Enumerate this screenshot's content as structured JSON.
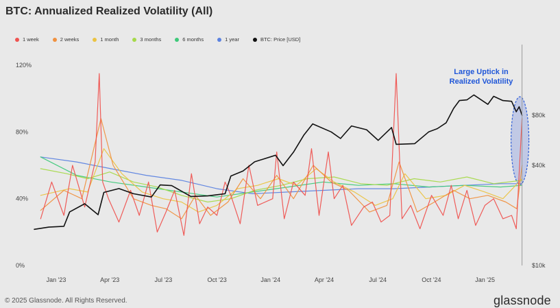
{
  "chart_data": {
    "type": "line",
    "title": "BTC: Annualized Realized Volatility (All)",
    "x_ticks": [
      "Jan '23",
      "Apr '23",
      "Jul '23",
      "Oct '23",
      "Jan '24",
      "Apr '24",
      "Jul '24",
      "Oct '24",
      "Jan '25"
    ],
    "x_range": [
      "2022-11-20",
      "2025-03-14"
    ],
    "y_left": {
      "ticks": [
        "0%",
        "40%",
        "80%",
        "120%"
      ],
      "range": [
        0,
        120
      ]
    },
    "y_right": {
      "scale": "log",
      "ticks": [
        "$10k",
        "$40k",
        "$80k"
      ],
      "range": [
        10000,
        160000
      ]
    },
    "legend_position": "top-left",
    "grid": false,
    "series": [
      {
        "name": "1 week",
        "color": "#ef5350",
        "axis": "left",
        "x": [
          "2022-12-01",
          "2022-12-20",
          "2023-01-10",
          "2023-01-25",
          "2023-02-15",
          "2023-03-05",
          "2023-03-12",
          "2023-03-18",
          "2023-03-28",
          "2023-04-15",
          "2023-05-05",
          "2023-05-20",
          "2023-06-05",
          "2023-06-20",
          "2023-07-05",
          "2023-07-20",
          "2023-08-05",
          "2023-08-18",
          "2023-09-01",
          "2023-09-15",
          "2023-10-01",
          "2023-10-15",
          "2023-10-25",
          "2023-11-10",
          "2023-11-25",
          "2023-12-10",
          "2024-01-05",
          "2024-01-12",
          "2024-01-25",
          "2024-02-10",
          "2024-03-01",
          "2024-03-12",
          "2024-03-25",
          "2024-04-10",
          "2024-04-20",
          "2024-05-05",
          "2024-05-20",
          "2024-06-10",
          "2024-06-25",
          "2024-07-10",
          "2024-07-25",
          "2024-08-05",
          "2024-08-15",
          "2024-08-30",
          "2024-09-15",
          "2024-10-05",
          "2024-10-25",
          "2024-11-08",
          "2024-11-20",
          "2024-12-05",
          "2024-12-20",
          "2025-01-05",
          "2025-01-20",
          "2025-02-05",
          "2025-02-20",
          "2025-02-28",
          "2025-03-05",
          "2025-03-10"
        ],
        "y": [
          28,
          50,
          30,
          60,
          35,
          62,
          115,
          50,
          40,
          26,
          45,
          30,
          50,
          20,
          32,
          45,
          18,
          55,
          25,
          35,
          30,
          50,
          42,
          25,
          60,
          36,
          40,
          68,
          28,
          50,
          42,
          70,
          30,
          68,
          40,
          48,
          24,
          35,
          38,
          26,
          30,
          115,
          28,
          36,
          22,
          42,
          30,
          48,
          28,
          45,
          24,
          36,
          40,
          28,
          30,
          22,
          55,
          88
        ]
      },
      {
        "name": "2 weeks",
        "color": "#f0913f",
        "axis": "left",
        "x": [
          "2022-12-01",
          "2023-01-10",
          "2023-02-10",
          "2023-03-15",
          "2023-04-05",
          "2023-05-10",
          "2023-06-10",
          "2023-07-05",
          "2023-08-01",
          "2023-08-25",
          "2023-09-20",
          "2023-10-20",
          "2023-11-15",
          "2023-12-15",
          "2024-01-12",
          "2024-02-10",
          "2024-03-15",
          "2024-04-15",
          "2024-05-15",
          "2024-06-20",
          "2024-07-20",
          "2024-08-10",
          "2024-09-10",
          "2024-10-10",
          "2024-11-12",
          "2024-12-10",
          "2025-01-10",
          "2025-02-10",
          "2025-03-01",
          "2025-03-10"
        ],
        "y": [
          33,
          45,
          40,
          88,
          60,
          40,
          36,
          34,
          28,
          42,
          30,
          38,
          52,
          40,
          54,
          40,
          60,
          50,
          45,
          32,
          36,
          62,
          32,
          38,
          45,
          40,
          42,
          38,
          34,
          60
        ]
      },
      {
        "name": "1 month",
        "color": "#ebc342",
        "axis": "left",
        "x": [
          "2022-12-01",
          "2023-01-20",
          "2023-02-20",
          "2023-03-20",
          "2023-04-20",
          "2023-05-25",
          "2023-06-30",
          "2023-08-01",
          "2023-08-30",
          "2023-10-01",
          "2023-11-05",
          "2023-12-10",
          "2024-01-15",
          "2024-02-15",
          "2024-03-20",
          "2024-04-20",
          "2024-05-25",
          "2024-06-30",
          "2024-07-30",
          "2024-08-20",
          "2024-09-25",
          "2024-10-30",
          "2024-12-01",
          "2025-01-05",
          "2025-02-05",
          "2025-03-10"
        ],
        "y": [
          42,
          46,
          44,
          70,
          55,
          44,
          40,
          38,
          32,
          36,
          46,
          48,
          52,
          48,
          58,
          50,
          44,
          36,
          40,
          55,
          40,
          42,
          48,
          44,
          40,
          52
        ]
      },
      {
        "name": "3 months",
        "color": "#a6d94a",
        "axis": "left",
        "x": [
          "2022-12-01",
          "2023-01-15",
          "2023-02-20",
          "2023-03-30",
          "2023-05-10",
          "2023-06-20",
          "2023-08-01",
          "2023-09-15",
          "2023-10-25",
          "2023-12-05",
          "2024-01-20",
          "2024-03-05",
          "2024-04-20",
          "2024-06-05",
          "2024-07-20",
          "2024-09-05",
          "2024-10-20",
          "2024-12-05",
          "2025-01-20",
          "2025-03-10"
        ],
        "y": [
          58,
          55,
          52,
          56,
          50,
          47,
          42,
          38,
          40,
          45,
          48,
          52,
          53,
          49,
          48,
          52,
          50,
          53,
          49,
          51
        ]
      },
      {
        "name": "6 months",
        "color": "#3ec97a",
        "axis": "left",
        "x": [
          "2022-12-01",
          "2023-02-01",
          "2023-04-01",
          "2023-06-01",
          "2023-08-01",
          "2023-10-01",
          "2023-12-01",
          "2024-02-01",
          "2024-04-01",
          "2024-06-01",
          "2024-08-01",
          "2024-10-01",
          "2024-12-01",
          "2025-02-01",
          "2025-03-10"
        ],
        "y": [
          65,
          54,
          50,
          47,
          44,
          41,
          44,
          47,
          50,
          48,
          49,
          47,
          48,
          47,
          48
        ]
      },
      {
        "name": "1 year",
        "color": "#5b82e0",
        "axis": "left",
        "x": [
          "2022-12-01",
          "2023-02-01",
          "2023-04-01",
          "2023-06-01",
          "2023-08-01",
          "2023-10-01",
          "2023-12-01",
          "2024-02-01",
          "2024-04-01",
          "2024-06-01",
          "2024-08-01",
          "2024-10-01",
          "2024-12-01",
          "2025-02-01",
          "2025-03-10"
        ],
        "y": [
          65,
          62,
          58,
          54,
          51,
          46,
          43,
          44,
          45,
          46,
          46,
          47,
          48,
          49,
          49
        ]
      },
      {
        "name": "BTC: Price [USD]",
        "color": "#111111",
        "axis": "right",
        "x": [
          "2022-11-20",
          "2022-12-15",
          "2023-01-10",
          "2023-01-20",
          "2023-02-15",
          "2023-03-10",
          "2023-03-20",
          "2023-04-15",
          "2023-05-10",
          "2023-06-10",
          "2023-06-25",
          "2023-07-15",
          "2023-08-17",
          "2023-09-15",
          "2023-10-15",
          "2023-10-25",
          "2023-11-15",
          "2023-12-05",
          "2024-01-10",
          "2024-01-23",
          "2024-02-10",
          "2024-02-28",
          "2024-03-14",
          "2024-04-15",
          "2024-05-01",
          "2024-05-20",
          "2024-06-15",
          "2024-07-05",
          "2024-07-28",
          "2024-08-05",
          "2024-09-06",
          "2024-09-30",
          "2024-10-15",
          "2024-10-30",
          "2024-11-12",
          "2024-11-22",
          "2024-12-05",
          "2024-12-17",
          "2025-01-10",
          "2025-01-20",
          "2025-02-05",
          "2025-02-20",
          "2025-02-28",
          "2025-03-05",
          "2025-03-10"
        ],
        "y": [
          16500,
          17000,
          17200,
          21000,
          23500,
          20200,
          27500,
          29000,
          27000,
          25800,
          30500,
          30200,
          26000,
          26200,
          27000,
          34500,
          37000,
          42000,
          46000,
          39800,
          48000,
          61000,
          71000,
          63500,
          58000,
          69000,
          65500,
          56500,
          67500,
          53500,
          54000,
          63500,
          66500,
          72000,
          88000,
          98000,
          99000,
          106000,
          93000,
          104000,
          98000,
          97000,
          84000,
          90000,
          80000
        ]
      }
    ],
    "annotation": {
      "lines": [
        "Large Uptick in",
        "Realized Volatility"
      ],
      "color": "#1f56d8"
    }
  },
  "footer": {
    "copyright": "© 2025 Glassnode. All Rights Reserved.",
    "logo": "glassnode"
  }
}
